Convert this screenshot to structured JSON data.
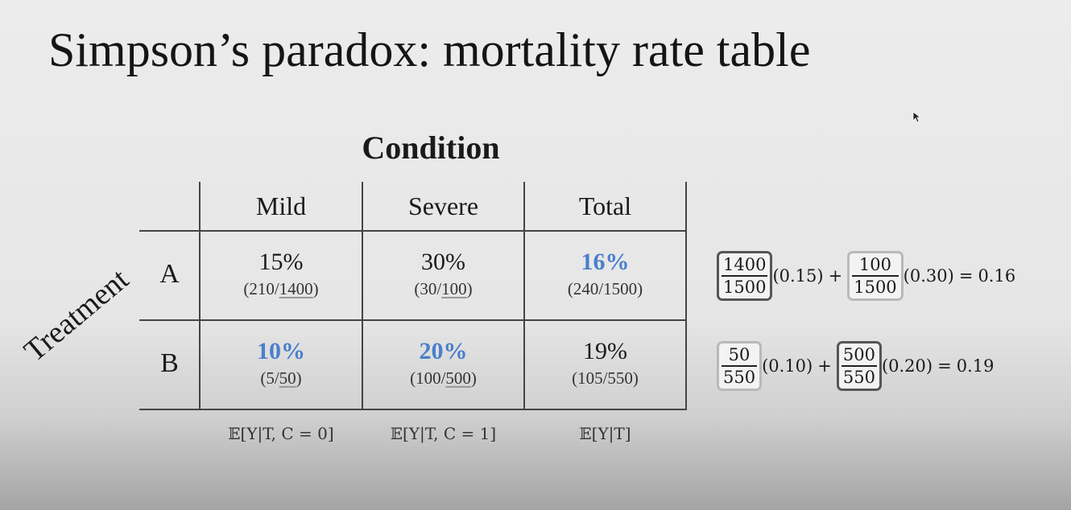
{
  "title": "Simpson’s paradox: mortality rate table",
  "condition_label": "Condition",
  "treatment_label": "Treatment",
  "columns": [
    "Mild",
    "Severe",
    "Total"
  ],
  "rows": [
    {
      "label": "A",
      "cells": [
        {
          "pct": "15%",
          "num": "210",
          "den": "1400",
          "highlight": false
        },
        {
          "pct": "30%",
          "num": "30",
          "den": "100",
          "highlight": false
        },
        {
          "pct": "16%",
          "num": "240",
          "den": "1500",
          "highlight": true
        }
      ]
    },
    {
      "label": "B",
      "cells": [
        {
          "pct": "10%",
          "num": "5",
          "den": "50",
          "highlight": true
        },
        {
          "pct": "20%",
          "num": "100",
          "den": "500",
          "highlight": true
        },
        {
          "pct": "19%",
          "num": "105",
          "den": "550",
          "highlight": false
        }
      ]
    }
  ],
  "expectations": [
    "𝔼[Y|T, C = 0]",
    "𝔼[Y|T, C = 1]",
    "𝔼[Y|T]"
  ],
  "formulas": [
    {
      "w1_num": "1400",
      "w1_den": "1500",
      "r1": "(0.15)",
      "plus": "+",
      "w2_num": "100",
      "w2_den": "1500",
      "r2": "(0.30)",
      "equals": "=",
      "result": "0.16"
    },
    {
      "w1_num": "50",
      "w1_den": "550",
      "r1": "(0.10)",
      "plus": "+",
      "w2_num": "500",
      "w2_den": "550",
      "r2": "(0.20)",
      "equals": "=",
      "result": "0.19"
    }
  ],
  "colors": {
    "highlight": "#4a7fcc",
    "grid": "#444444",
    "box_dark": "#555555",
    "box_light": "#b9b9b9"
  }
}
